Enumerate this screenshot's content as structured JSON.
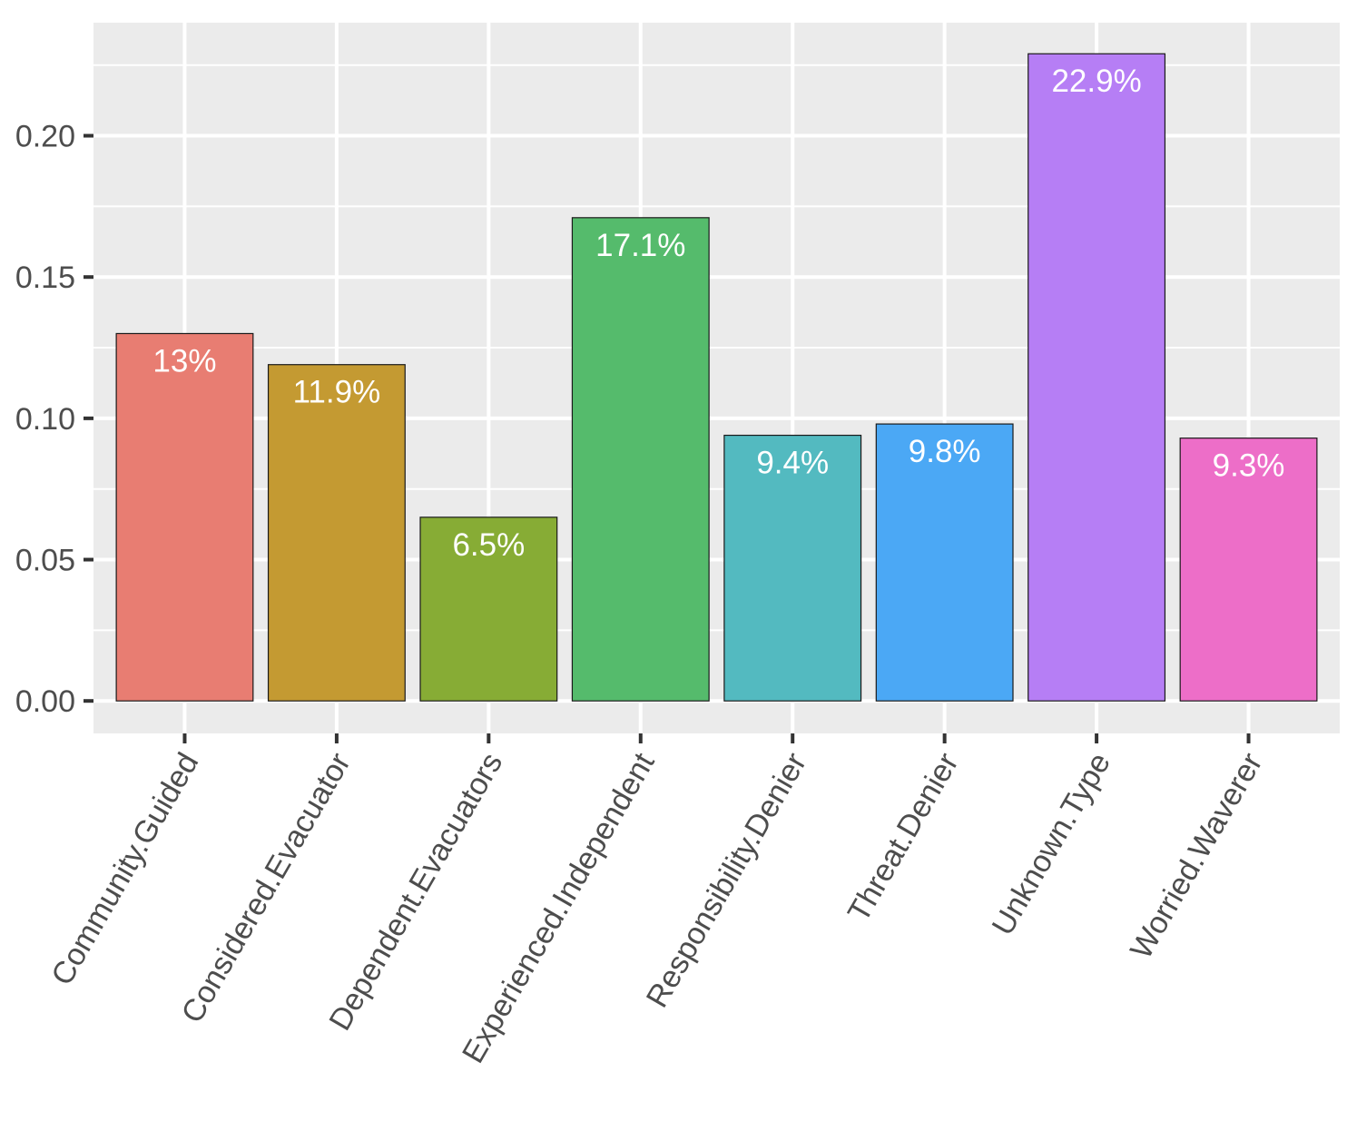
{
  "chart_data": {
    "type": "bar",
    "categories": [
      "Community.Guided",
      "Considered.Evacuator",
      "Dependent.Evacuators",
      "Experienced.Independent",
      "Responsibility.Denier",
      "Threat.Denier",
      "Unknown.Type",
      "Worried.Waverer"
    ],
    "values": [
      0.13,
      0.119,
      0.065,
      0.171,
      0.094,
      0.098,
      0.229,
      0.093
    ],
    "data_labels": [
      "13%",
      "11.9%",
      "6.5%",
      "17.1%",
      "9.4%",
      "9.8%",
      "22.9%",
      "9.3%"
    ],
    "colors": [
      "#E87D72",
      "#C49A32",
      "#87AC35",
      "#55BB6C",
      "#53BAC0",
      "#4BA8F5",
      "#B67EF5",
      "#ED6EC8"
    ],
    "y_ticks": [
      "0.00",
      "0.05",
      "0.10",
      "0.15",
      "0.20"
    ],
    "y_tick_values": [
      0,
      0.05,
      0.1,
      0.15,
      0.2
    ],
    "ylim": [
      -0.0115,
      0.24
    ],
    "title": "",
    "xlabel": "",
    "ylabel": "",
    "grid": true,
    "panel_background": "#EBEBEB",
    "legend": "none"
  }
}
